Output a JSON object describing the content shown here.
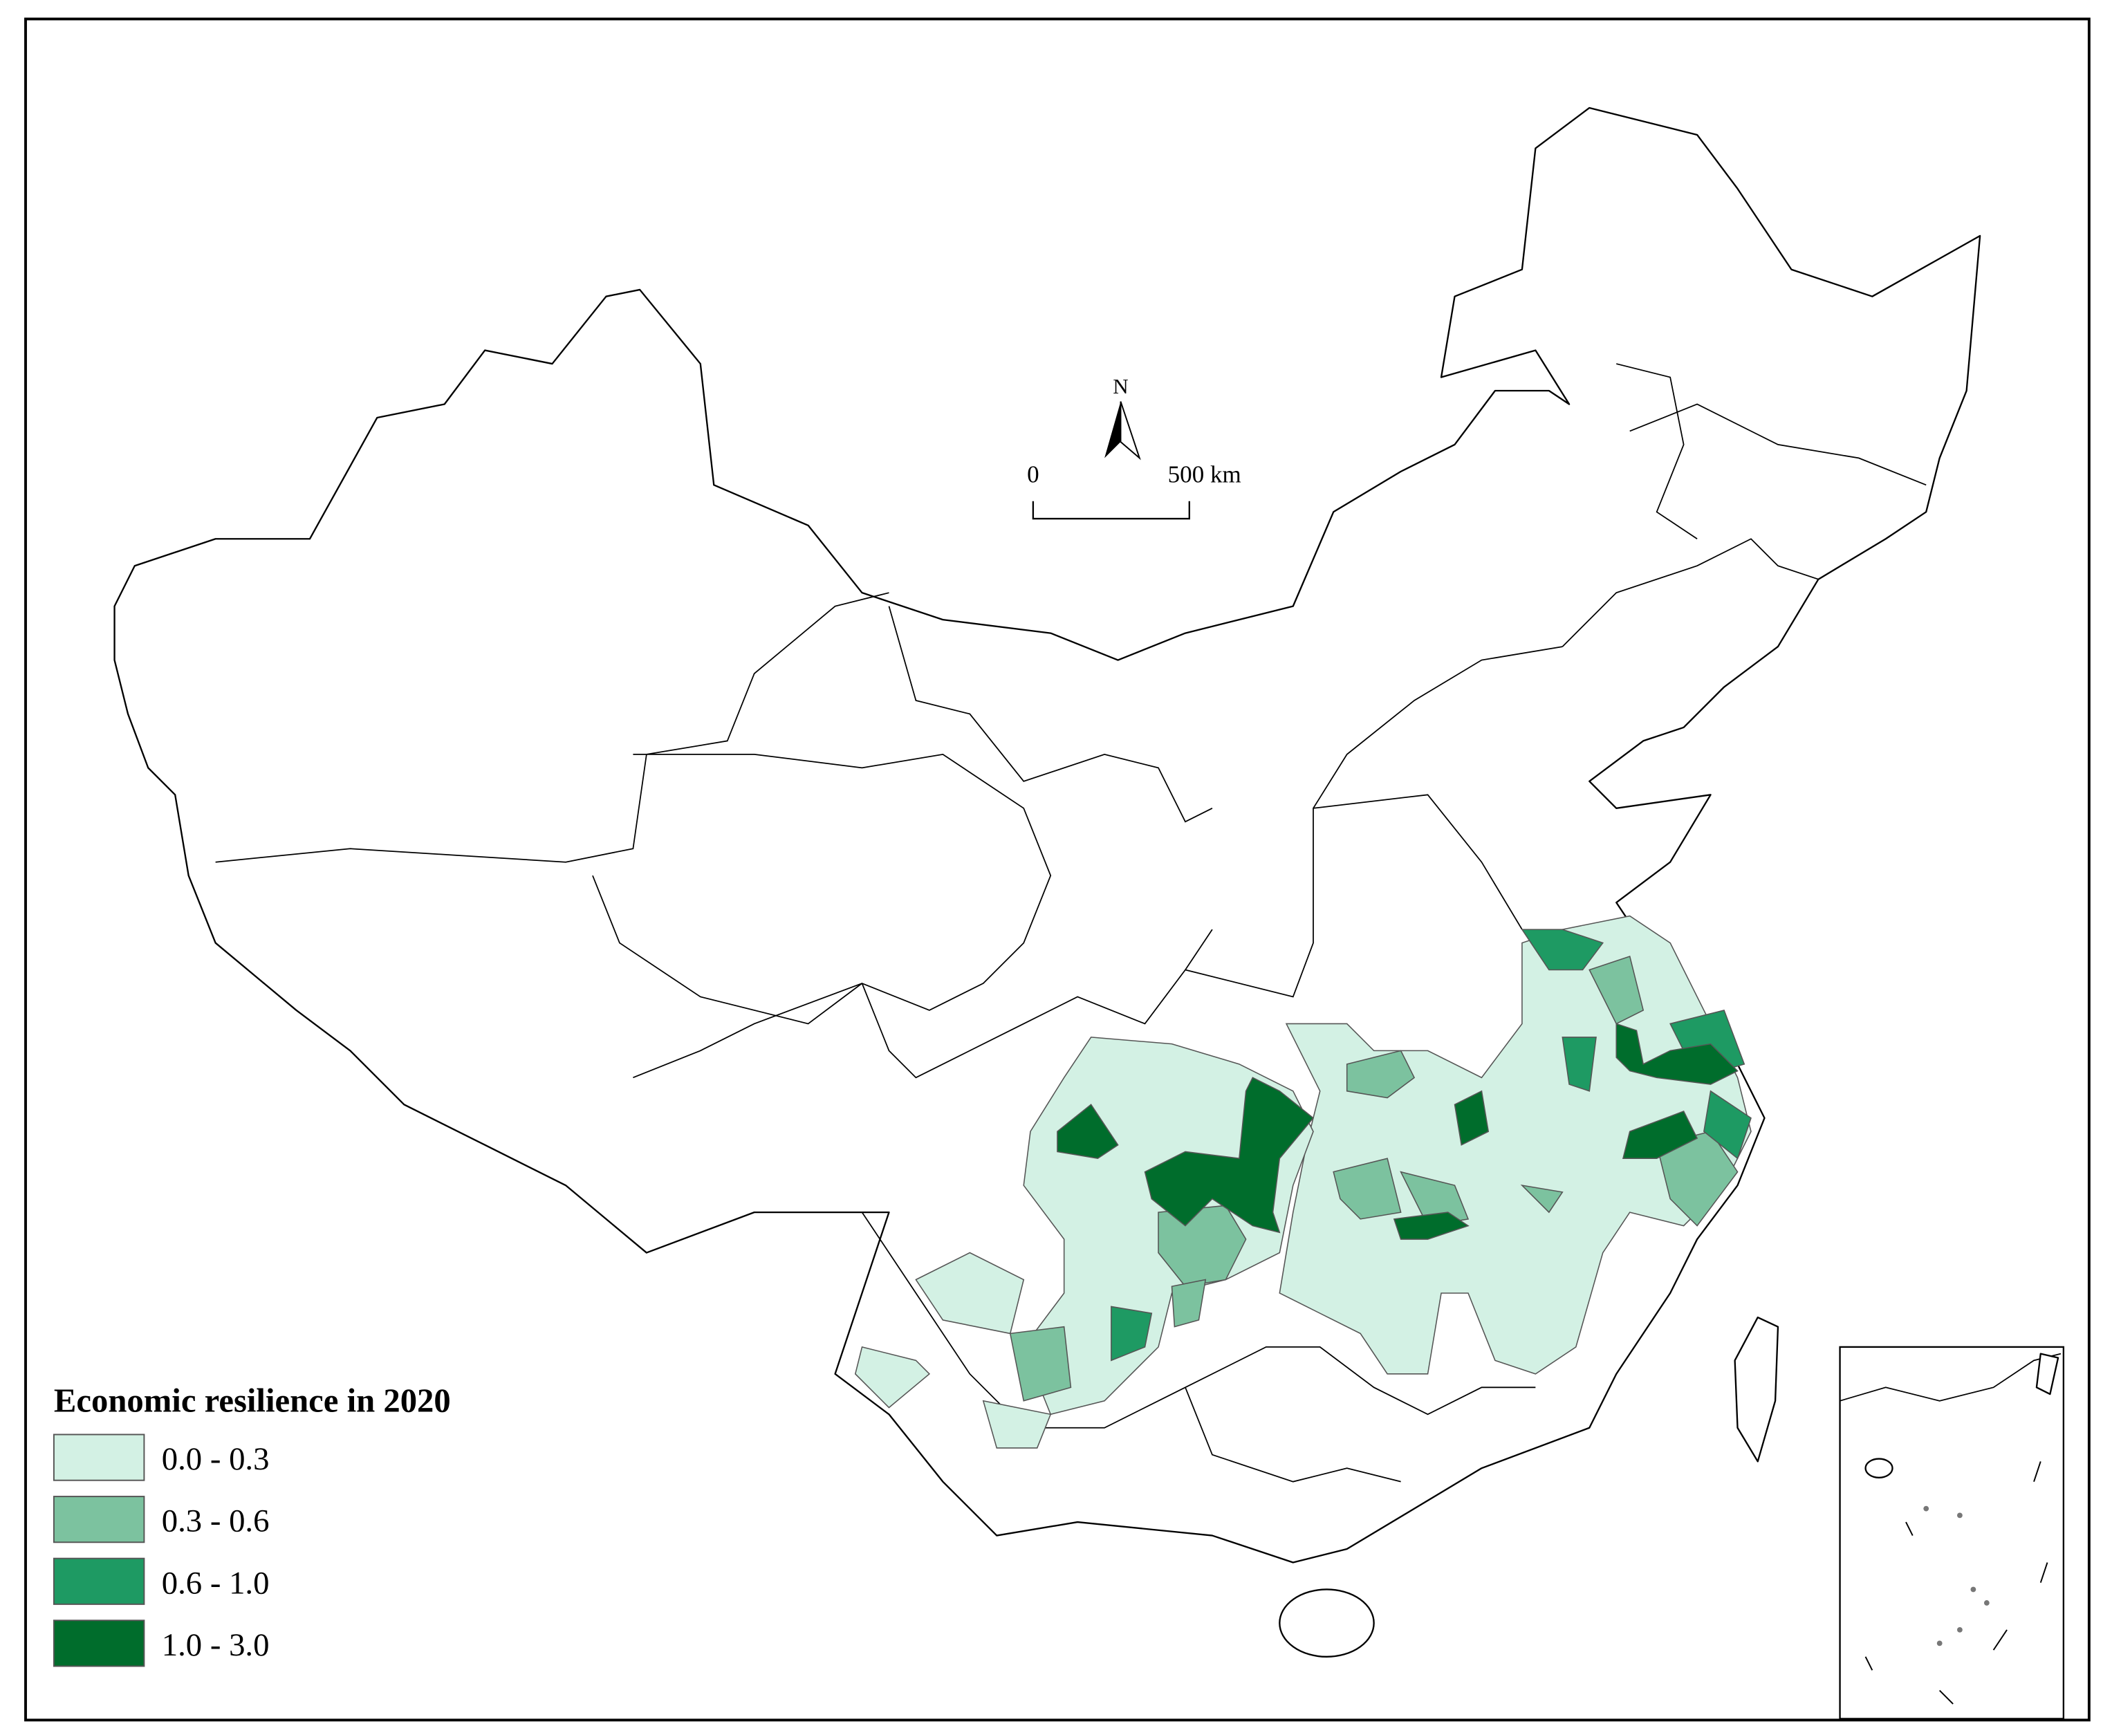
{
  "legend": {
    "title": "Economic resilience in 2020",
    "items": [
      {
        "label": "0.0 - 0.3",
        "color": "#d3f1e4"
      },
      {
        "label": "0.3 - 0.6",
        "color": "#7cc29f"
      },
      {
        "label": "0.6 - 1.0",
        "color": "#1e9a63"
      },
      {
        "label": "1.0 - 3.0",
        "color": "#006d2c"
      }
    ]
  },
  "north_arrow": {
    "label": "N"
  },
  "scale_bar": {
    "labels": [
      "0",
      "500 km"
    ]
  }
}
